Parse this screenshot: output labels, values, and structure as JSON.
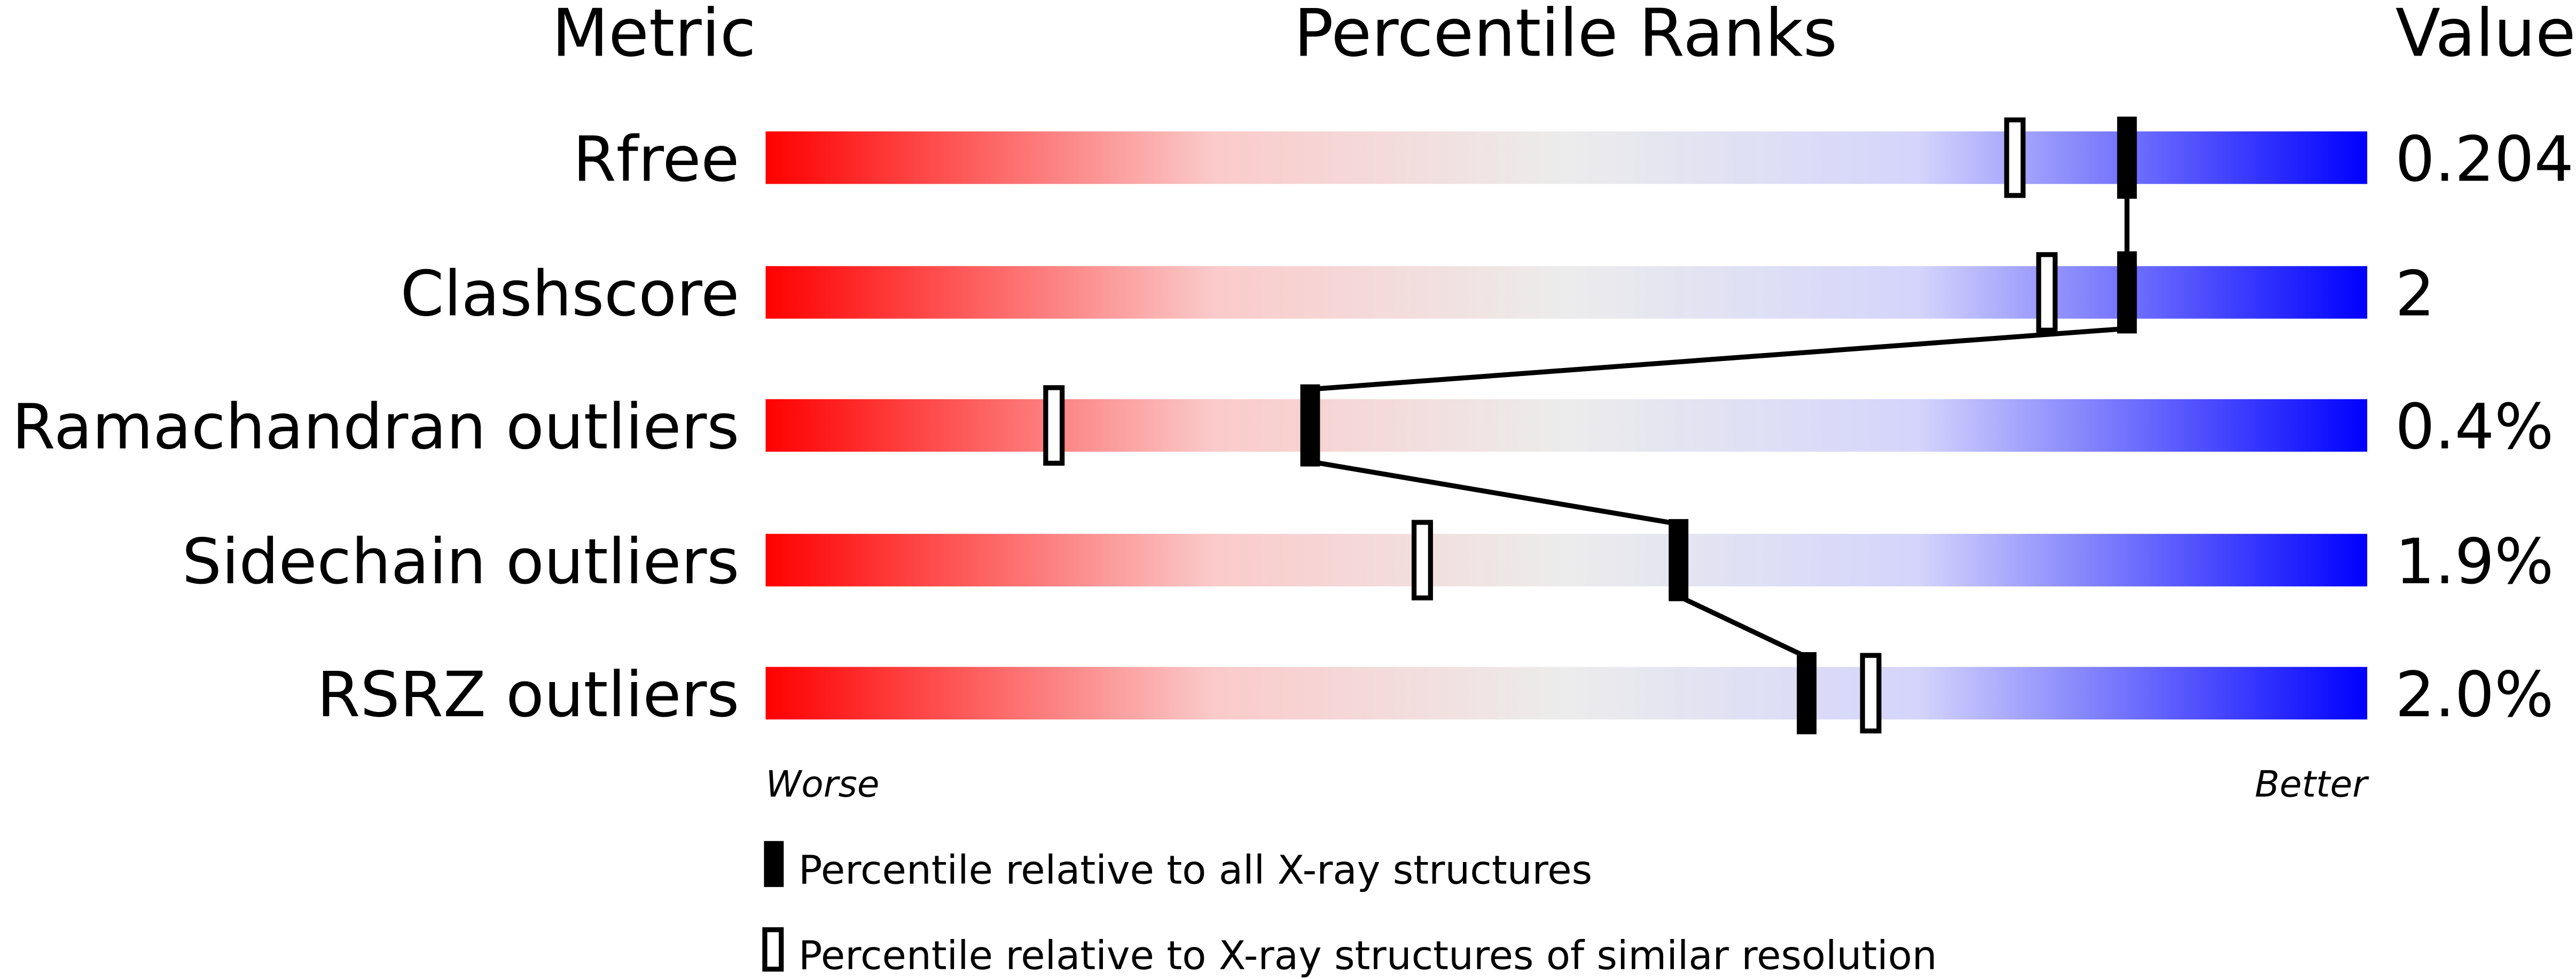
{
  "chart_data": {
    "type": "percentile-bar",
    "headers": {
      "metric": "Metric",
      "ranks": "Percentile Ranks",
      "value": "Value"
    },
    "xlim": [
      0,
      100
    ],
    "axis_labels": {
      "left": "Worse",
      "right": "Better"
    },
    "gradient_colors": [
      "#ff0000",
      "#f0f0f0",
      "#0000ff"
    ],
    "metrics": [
      {
        "name": "Rfree",
        "value": "0.204",
        "percentile_all": 85,
        "percentile_similar": 78
      },
      {
        "name": "Clashscore",
        "value": "2",
        "percentile_all": 85,
        "percentile_similar": 80
      },
      {
        "name": "Ramachandran outliers",
        "value": "0.4%",
        "percentile_all": 34,
        "percentile_similar": 18
      },
      {
        "name": "Sidechain outliers",
        "value": "1.9%",
        "percentile_all": 57,
        "percentile_similar": 41
      },
      {
        "name": "RSRZ outliers",
        "value": "2.0%",
        "percentile_all": 65,
        "percentile_similar": 69
      }
    ],
    "legend": [
      {
        "marker": "filled",
        "label": "Percentile relative to all X-ray structures"
      },
      {
        "marker": "open",
        "label": "Percentile relative to X-ray structures of similar resolution"
      }
    ]
  }
}
